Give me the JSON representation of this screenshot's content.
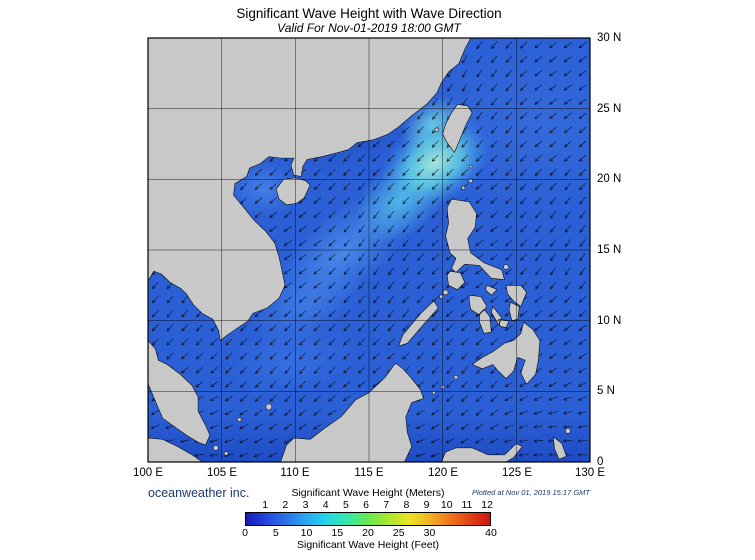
{
  "title": "Significant Wave Height with Wave Direction",
  "subtitle": "Valid For Nov-01-2019 18:00 GMT",
  "credit": "oceanweather inc.",
  "plotted_note": "Plotted at Nov 01, 2019 15:17 GMT",
  "axes": {
    "lon": [
      "100 E",
      "105 E",
      "110 E",
      "115 E",
      "120 E",
      "125 E",
      "130 E"
    ],
    "lat": [
      "30 N",
      "25 N",
      "20 N",
      "15 N",
      "10 N",
      "5 N",
      "0"
    ]
  },
  "legend": {
    "meters_label": "Significant Wave Height (Meters)",
    "feet_label": "Significant Wave Height (Feet)",
    "meters_ticks": [
      1,
      2,
      3,
      4,
      5,
      6,
      7,
      8,
      9,
      10,
      11,
      12
    ],
    "feet_ticks": [
      0,
      5,
      10,
      15,
      20,
      25,
      30,
      40
    ],
    "gradient": [
      "#1a1ab4",
      "#2346e0",
      "#2a74ea",
      "#28aaf0",
      "#22d8e6",
      "#38e8a8",
      "#66e84e",
      "#aae62e",
      "#e8e422",
      "#f2b424",
      "#f0781e",
      "#e04414",
      "#cc1410"
    ]
  },
  "colors": {
    "land": "#c8c8c8",
    "coastline": "#000000",
    "ocean_base": "#2b5fd6",
    "high_wave_cyan": "#aaf0dc",
    "credit_text": "#1c3a6e"
  }
}
